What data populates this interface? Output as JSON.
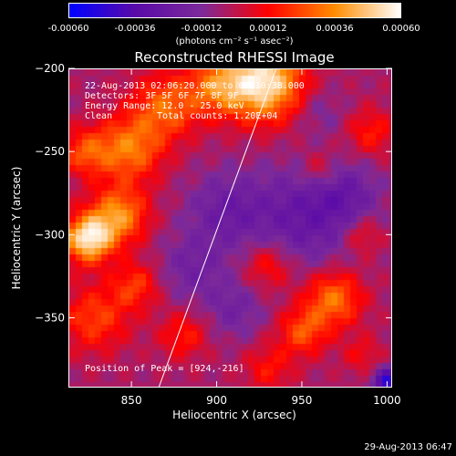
{
  "colorbar": {
    "tick_labels": [
      "-0.00060",
      "-0.00036",
      "-0.00012",
      "0.00012",
      "0.00036",
      "0.00060"
    ],
    "min": -0.0006,
    "max": 0.0006,
    "units": "(photons cm⁻² s⁻¹ asec⁻²)",
    "colors": [
      "#0000ff",
      "#5a0aa8",
      "#7c2a9a",
      "#ff0000",
      "#ff8c00",
      "#ffffff"
    ]
  },
  "chart_data": {
    "type": "heatmap",
    "title": "Reconstructed RHESSI Image",
    "xlabel": "Heliocentric X (arcsec)",
    "ylabel": "Heliocentric Y (arcsec)",
    "xlim": [
      813,
      1003
    ],
    "ylim": [
      -392,
      -200
    ],
    "xticks": [
      850,
      900,
      950,
      1000
    ],
    "yticks": [
      -200,
      -250,
      -300,
      -350
    ],
    "annotations": [
      "22-Aug-2013 02:06:20.000 to 02:10:38.000",
      "Detectors: 3F 5F 6F 7F 8F 9F",
      "Energy Range: 12.0 - 25.0 keV",
      "Clean",
      "Total counts: 1.20E+04"
    ],
    "peak_label": "Position of Peak = [924,-216]",
    "peak": [
      924,
      -216
    ],
    "grid": false,
    "limb_line": [
      [
        866,
        -392
      ],
      [
        935,
        -200
      ]
    ],
    "blobs": [
      {
        "x": 927,
        "y": -208,
        "v": 0.0006,
        "s": 16
      },
      {
        "x": 824,
        "y": -302,
        "v": 0.00058,
        "s": 10
      },
      {
        "x": 842,
        "y": -288,
        "v": 0.0004,
        "s": 12
      },
      {
        "x": 848,
        "y": -248,
        "v": 0.00036,
        "s": 14
      },
      {
        "x": 870,
        "y": -222,
        "v": 0.00032,
        "s": 14
      },
      {
        "x": 900,
        "y": -210,
        "v": 0.0003,
        "s": 12
      },
      {
        "x": 822,
        "y": -250,
        "v": 0.00026,
        "s": 10
      },
      {
        "x": 828,
        "y": -350,
        "v": 0.00026,
        "s": 14
      },
      {
        "x": 852,
        "y": -330,
        "v": 0.00024,
        "s": 10
      },
      {
        "x": 968,
        "y": -338,
        "v": 0.00036,
        "s": 12
      },
      {
        "x": 950,
        "y": -358,
        "v": 0.00028,
        "s": 10
      },
      {
        "x": 930,
        "y": -318,
        "v": 0.00022,
        "s": 10
      },
      {
        "x": 985,
        "y": -300,
        "v": 0.00018,
        "s": 8
      },
      {
        "x": 990,
        "y": -238,
        "v": 0.0002,
        "s": 10
      },
      {
        "x": 960,
        "y": -260,
        "v": 0.00016,
        "s": 8
      },
      {
        "x": 930,
        "y": -380,
        "v": 0.00018,
        "s": 10
      },
      {
        "x": 985,
        "y": -372,
        "v": 0.00014,
        "s": 8
      },
      {
        "x": 880,
        "y": -360,
        "v": 0.0002,
        "s": 10
      },
      {
        "x": 950,
        "y": -290,
        "v": -0.00022,
        "s": 22
      },
      {
        "x": 905,
        "y": -285,
        "v": -0.00018,
        "s": 16
      },
      {
        "x": 885,
        "y": -320,
        "v": -0.00015,
        "s": 14
      },
      {
        "x": 975,
        "y": -275,
        "v": -0.00016,
        "s": 14
      },
      {
        "x": 1000,
        "y": -388,
        "v": -0.00045,
        "s": 6
      },
      {
        "x": 910,
        "y": -345,
        "v": -0.00014,
        "s": 12
      },
      {
        "x": 960,
        "y": -225,
        "v": -0.0001,
        "s": 10
      }
    ]
  },
  "timestamp": "29-Aug-2013 06:47"
}
